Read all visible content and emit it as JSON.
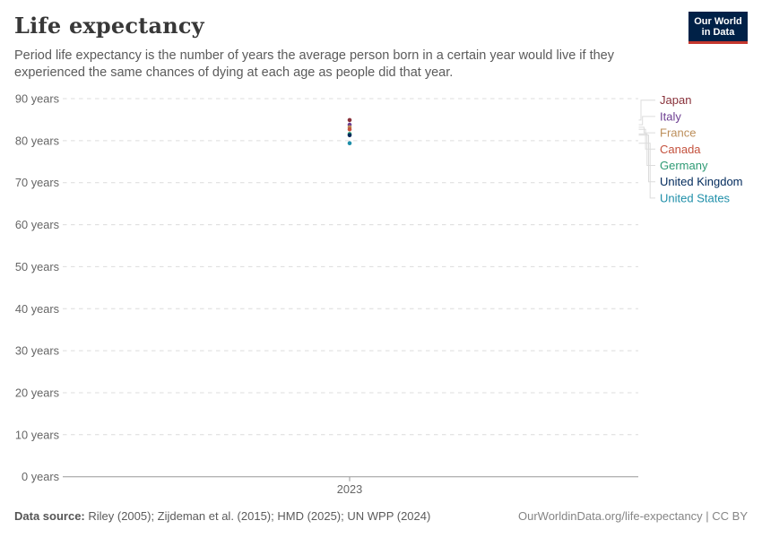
{
  "header": {
    "title": "Life expectancy",
    "subtitle": "Period life expectancy is the number of years the average person born in a certain year would live if they experienced the same chances of dying at each age as people did that year.",
    "logo": {
      "line1": "Our World",
      "line2": "in Data",
      "bg_color": "#002147",
      "accent_color": "#C5372E"
    }
  },
  "chart_data": {
    "type": "scatter",
    "x": [
      2023
    ],
    "x_tick_label": "2023",
    "ylim": [
      0,
      90
    ],
    "y_tick_step": 10,
    "y_tick_labels": [
      "0 years",
      "10 years",
      "20 years",
      "30 years",
      "40 years",
      "50 years",
      "60 years",
      "70 years",
      "80 years",
      "90 years"
    ],
    "grid": true,
    "legend_position": "right",
    "series": [
      {
        "name": "Japan",
        "year": 2023,
        "value": 84.9,
        "color": "#883039"
      },
      {
        "name": "Italy",
        "year": 2023,
        "value": 83.8,
        "color": "#6D3E91"
      },
      {
        "name": "France",
        "year": 2023,
        "value": 83.2,
        "color": "#BC8E5A"
      },
      {
        "name": "Canada",
        "year": 2023,
        "value": 82.7,
        "color": "#C4523E"
      },
      {
        "name": "Germany",
        "year": 2023,
        "value": 81.6,
        "color": "#2E9A74"
      },
      {
        "name": "United Kingdom",
        "year": 2023,
        "value": 81.3,
        "color": "#00295B"
      },
      {
        "name": "United States",
        "year": 2023,
        "value": 79.4,
        "color": "#1F8FA9"
      }
    ],
    "colors": {
      "gridline": "#dcdcdc",
      "axis_line": "#999999",
      "tick_text": "#666666",
      "connector": "#dcdcdc"
    }
  },
  "footer": {
    "source_label": "Data source:",
    "source_text": " Riley (2005); Zijdeman et al. (2015); HMD (2025); UN WPP (2024)",
    "credit": "OurWorldinData.org/life-expectancy | CC BY"
  }
}
